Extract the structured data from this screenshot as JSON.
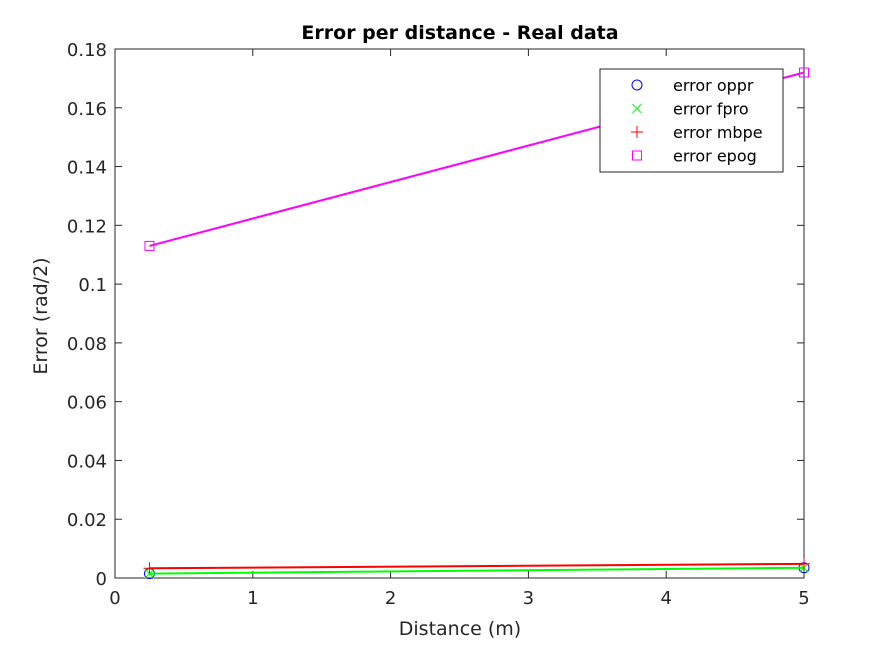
{
  "chart_data": {
    "type": "line",
    "title": "Error per distance  - Real data",
    "xlabel": "Distance (m)",
    "ylabel": "Error (rad/2)",
    "xlim": [
      0,
      5
    ],
    "ylim": [
      0,
      0.18
    ],
    "xticks": [
      "0",
      "1",
      "2",
      "3",
      "4",
      "5"
    ],
    "yticks": [
      "0",
      "0.02",
      "0.04",
      "0.06",
      "0.08",
      "0.1",
      "0.12",
      "0.14",
      "0.16",
      "0.18"
    ],
    "grid": false,
    "legend_position": "top-right",
    "x": [
      0.25,
      5
    ],
    "series": [
      {
        "name": "error oppr",
        "values": [
          0.0015,
          0.0035
        ],
        "color": "#0000ff",
        "marker": "circle",
        "line": false
      },
      {
        "name": "error fpro",
        "values": [
          0.0015,
          0.0035
        ],
        "color": "#00ff00",
        "marker": "x",
        "line": true
      },
      {
        "name": "error mbpe",
        "values": [
          0.0033,
          0.0048
        ],
        "color": "#ff0000",
        "marker": "plus",
        "line": true
      },
      {
        "name": "error epog",
        "values": [
          0.113,
          0.172
        ],
        "color": "#ff00ff",
        "marker": "square",
        "line": true
      }
    ]
  }
}
